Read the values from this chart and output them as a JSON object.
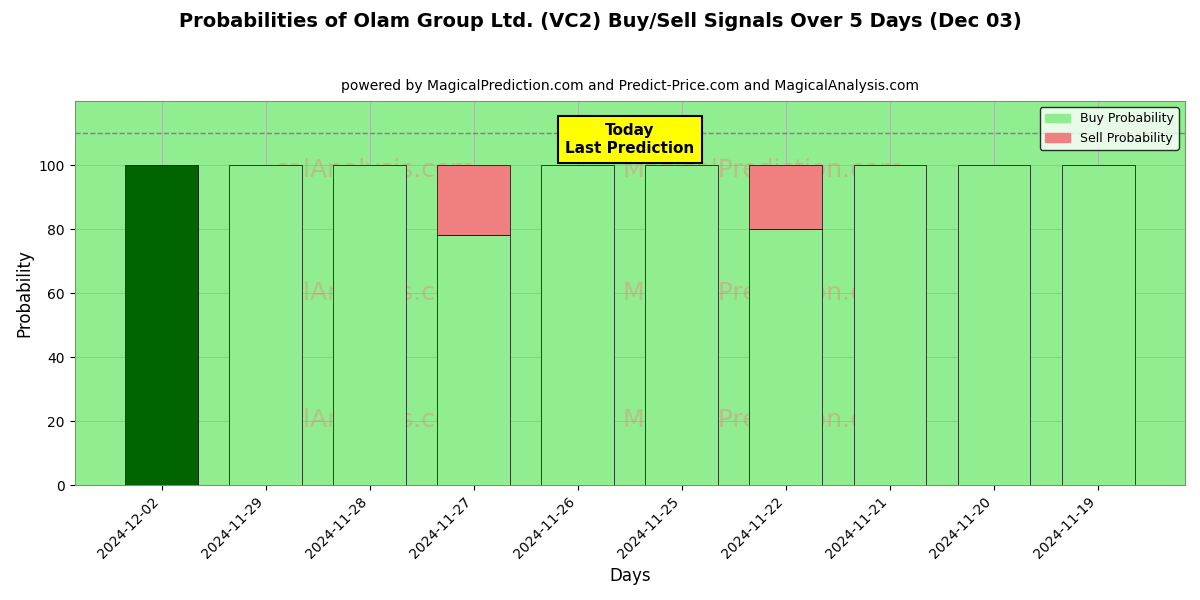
{
  "title": "Probabilities of Olam Group Ltd. (VC2) Buy/Sell Signals Over 5 Days (Dec 03)",
  "subtitle": "powered by MagicalPrediction.com and Predict-Price.com and MagicalAnalysis.com",
  "xlabel": "Days",
  "ylabel": "Probability",
  "categories": [
    "2024-12-02",
    "2024-11-29",
    "2024-11-28",
    "2024-11-27",
    "2024-11-26",
    "2024-11-25",
    "2024-11-22",
    "2024-11-21",
    "2024-11-20",
    "2024-11-19"
  ],
  "buy_values": [
    100,
    100,
    100,
    78,
    100,
    100,
    80,
    100,
    100,
    100
  ],
  "sell_values": [
    0,
    0,
    0,
    22,
    0,
    0,
    20,
    0,
    0,
    0
  ],
  "today_index": 0,
  "today_label": "Today\nLast Prediction",
  "buy_color_today": "#006400",
  "buy_color_normal": "#90EE90",
  "sell_color": "#F08080",
  "plot_bg_color": "#90EE90",
  "ylim": [
    0,
    120
  ],
  "yticks": [
    0,
    20,
    40,
    60,
    80,
    100
  ],
  "dashed_line_y": 110,
  "legend_buy_label": "Buy Probability",
  "legend_sell_label": "Sell Probability",
  "grid_color": "#aaaaaa",
  "background_color": "#ffffff",
  "title_fontsize": 14,
  "subtitle_fontsize": 10,
  "label_fontsize": 12,
  "tick_fontsize": 10
}
